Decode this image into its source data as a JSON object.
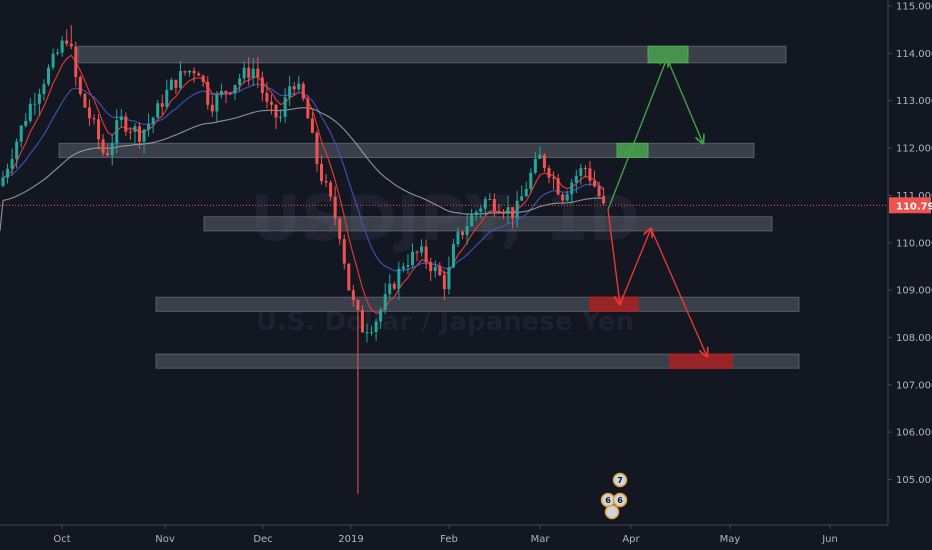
{
  "chart_data": {
    "type": "candlestick",
    "symbol": "USDJPY",
    "timeframe": "1D",
    "description": "U.S. Dollar / Japanese Yen",
    "current_price": "110.791",
    "y_axis": {
      "range": [
        104.3,
        115.1
      ],
      "ticks": [
        "115.000",
        "114.000",
        "113.000",
        "112.000",
        "111.000",
        "110.000",
        "109.000",
        "108.000",
        "107.000",
        "106.000",
        "105.000"
      ]
    },
    "x_axis": {
      "labels": [
        "Oct",
        "Nov",
        "Dec",
        "2019",
        "Feb",
        "Mar",
        "Apr",
        "May",
        "Jun"
      ]
    },
    "zones": [
      {
        "name": "resistance-114",
        "from": 113.8,
        "to": 114.15
      },
      {
        "name": "resistance-112",
        "from": 111.8,
        "to": 112.1
      },
      {
        "name": "support-110.4",
        "from": 110.25,
        "to": 110.55
      },
      {
        "name": "support-108.7",
        "from": 108.55,
        "to": 108.85
      },
      {
        "name": "support-107.5",
        "from": 107.35,
        "to": 107.65
      }
    ],
    "targets": [
      {
        "name": "bull-target-upper",
        "color": "#4caf50",
        "from": 113.8,
        "to": 114.15
      },
      {
        "name": "bull-target-lower",
        "color": "#4caf50",
        "from": 111.8,
        "to": 112.1
      },
      {
        "name": "bear-target-upper",
        "color": "#b71c1c",
        "from": 108.55,
        "to": 108.85
      },
      {
        "name": "bear-target-lower",
        "color": "#b71c1c",
        "from": 107.35,
        "to": 107.65
      }
    ],
    "bull_path": [
      110.7,
      112.0,
      113.9,
      112.1
    ],
    "bear_path": [
      110.7,
      108.7,
      110.3,
      107.6
    ],
    "series": [
      {
        "name": "EMA short",
        "color": "#e53935"
      },
      {
        "name": "EMA medium",
        "color": "#3f51b5"
      },
      {
        "name": "EMA long",
        "color": "#b0b0b0"
      }
    ],
    "colors": {
      "up": "#26a69a",
      "down": "#ef5350",
      "background": "#131722",
      "current": "#ef5350"
    },
    "events": [
      {
        "label": "7"
      },
      {
        "label": "6"
      },
      {
        "label": "6"
      }
    ]
  }
}
